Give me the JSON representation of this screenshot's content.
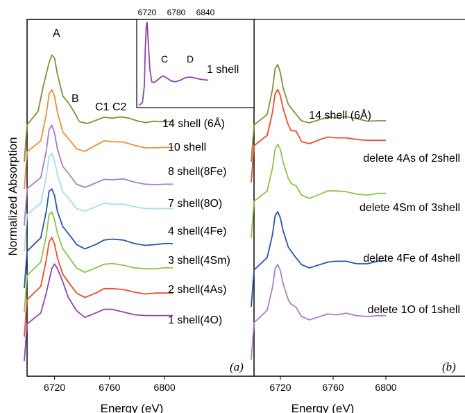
{
  "chart_data": [
    {
      "type": "line",
      "panel_label": "(a)",
      "xlabel": "Energy (eV)",
      "ylabel": "Normalized Absorption",
      "xlim": [
        6700,
        6840
      ],
      "xticks": [
        "6720",
        "6760",
        "6800"
      ],
      "feature_labels": [
        "A",
        "B",
        "C1",
        "C2"
      ],
      "series": [
        {
          "name": "14 shell (6Å)",
          "color": "#8a8a3c",
          "offset": 8,
          "x": [
            6700,
            6708,
            6712,
            6716,
            6718,
            6720,
            6722,
            6726,
            6730,
            6734,
            6738,
            6744,
            6750,
            6756,
            6762,
            6768,
            6774,
            6780,
            6786,
            6792,
            6800,
            6806
          ],
          "y": [
            0.05,
            0.35,
            0.95,
            1.45,
            1.62,
            1.55,
            1.2,
            0.7,
            0.55,
            0.35,
            0.12,
            0.08,
            0.15,
            0.22,
            0.2,
            0.23,
            0.2,
            0.14,
            0.1,
            0.13,
            0.12,
            0.12
          ]
        },
        {
          "name": "10 shell",
          "color": "#e8903c",
          "offset": 7,
          "x": [
            6700,
            6710,
            6714,
            6716,
            6718,
            6720,
            6722,
            6726,
            6730,
            6736,
            6742,
            6750,
            6756,
            6762,
            6770,
            6778,
            6786,
            6794,
            6800,
            6806
          ],
          "y": [
            0.05,
            0.3,
            0.9,
            1.35,
            1.45,
            1.3,
            0.95,
            0.5,
            0.35,
            0.12,
            0.06,
            0.2,
            0.3,
            0.28,
            0.27,
            0.2,
            0.14,
            0.14,
            0.15,
            0.15
          ]
        },
        {
          "name": "8 shell(8Fe)",
          "color": "#a77fc0",
          "offset": 6,
          "x": [
            6700,
            6710,
            6714,
            6716,
            6718,
            6720,
            6722,
            6726,
            6730,
            6736,
            6742,
            6750,
            6756,
            6762,
            6770,
            6778,
            6786,
            6794,
            6800,
            6806
          ],
          "y": [
            0.05,
            0.3,
            0.9,
            1.38,
            1.48,
            1.3,
            0.95,
            0.55,
            0.4,
            0.15,
            0.08,
            0.18,
            0.26,
            0.25,
            0.27,
            0.2,
            0.15,
            0.14,
            0.15,
            0.15
          ]
        },
        {
          "name": "7 shell(8O)",
          "color": "#a8dde8",
          "offset": 5,
          "x": [
            6700,
            6710,
            6714,
            6716,
            6718,
            6720,
            6722,
            6726,
            6730,
            6736,
            6742,
            6750,
            6756,
            6762,
            6770,
            6778,
            6786,
            6794,
            6800,
            6806
          ],
          "y": [
            0.05,
            0.3,
            0.9,
            1.35,
            1.42,
            1.25,
            0.95,
            0.55,
            0.42,
            0.18,
            0.12,
            0.22,
            0.3,
            0.28,
            0.28,
            0.22,
            0.18,
            0.18,
            0.18,
            0.18
          ]
        },
        {
          "name": "4 shell(4Fe)",
          "color": "#2a55a5",
          "offset": 4,
          "x": [
            6700,
            6710,
            6714,
            6716,
            6718,
            6720,
            6722,
            6726,
            6730,
            6736,
            6742,
            6750,
            6756,
            6762,
            6770,
            6778,
            6786,
            6794,
            6800,
            6806
          ],
          "y": [
            0.05,
            0.35,
            0.95,
            1.4,
            1.45,
            1.3,
            0.95,
            0.6,
            0.45,
            0.2,
            0.1,
            0.2,
            0.3,
            0.32,
            0.3,
            0.22,
            0.18,
            0.2,
            0.22,
            0.22
          ]
        },
        {
          "name": "3 shell(4Sm)",
          "color": "#8bc34a",
          "offset": 3,
          "x": [
            6700,
            6710,
            6714,
            6716,
            6718,
            6720,
            6722,
            6726,
            6730,
            6736,
            6742,
            6750,
            6756,
            6762,
            6770,
            6778,
            6786,
            6794,
            6800,
            6806
          ],
          "y": [
            0.05,
            0.35,
            0.95,
            1.42,
            1.48,
            1.3,
            1.0,
            0.65,
            0.48,
            0.22,
            0.12,
            0.22,
            0.3,
            0.32,
            0.28,
            0.22,
            0.2,
            0.2,
            0.22,
            0.22
          ]
        },
        {
          "name": "2 shell(4As)",
          "color": "#f04a2a",
          "offset": 2,
          "x": [
            6700,
            6710,
            6714,
            6716,
            6718,
            6720,
            6722,
            6726,
            6730,
            6736,
            6742,
            6750,
            6756,
            6762,
            6770,
            6778,
            6786,
            6794,
            6800,
            6806
          ],
          "y": [
            0.05,
            0.35,
            0.95,
            1.35,
            1.45,
            1.3,
            1.0,
            0.62,
            0.45,
            0.2,
            0.1,
            0.2,
            0.3,
            0.3,
            0.28,
            0.22,
            0.18,
            0.2,
            0.2,
            0.2
          ]
        },
        {
          "name": "1 shell(4O)",
          "color": "#8e44ad",
          "offset": 1,
          "x": [
            6700,
            6710,
            6714,
            6718,
            6720,
            6722,
            6726,
            6730,
            6736,
            6742,
            6750,
            6756,
            6762,
            6770,
            6778,
            6786,
            6794,
            6800,
            6806
          ],
          "y": [
            0.05,
            0.3,
            0.75,
            1.3,
            1.4,
            1.3,
            1.0,
            0.65,
            0.35,
            0.2,
            0.3,
            0.38,
            0.38,
            0.32,
            0.26,
            0.24,
            0.24,
            0.24,
            0.24
          ]
        }
      ]
    },
    {
      "type": "line",
      "panel_label": "(b)",
      "xlabel": "Energy (eV)",
      "xlim": [
        6700,
        6840
      ],
      "xticks": [
        "6720",
        "6760",
        "6800"
      ],
      "series": [
        {
          "name": "14 shell (6Å)",
          "color": "#8a8a3c",
          "offset": 5,
          "x": [
            6700,
            6710,
            6714,
            6716,
            6718,
            6720,
            6722,
            6726,
            6730,
            6736,
            6742,
            6750,
            6756,
            6762,
            6770,
            6778,
            6786,
            6794,
            6800
          ],
          "y": [
            0.05,
            0.3,
            0.9,
            1.4,
            1.5,
            1.3,
            0.95,
            0.55,
            0.38,
            0.15,
            0.1,
            0.18,
            0.24,
            0.22,
            0.25,
            0.2,
            0.14,
            0.15,
            0.15
          ]
        },
        {
          "name": "delete 4As of 2shell",
          "color": "#f04a2a",
          "offset": 4,
          "x": [
            6700,
            6710,
            6714,
            6716,
            6718,
            6720,
            6722,
            6726,
            6728,
            6732,
            6736,
            6742,
            6750,
            6756,
            6762,
            6770,
            6778,
            6786,
            6794,
            6800
          ],
          "y": [
            0.05,
            0.3,
            0.85,
            1.3,
            1.4,
            1.25,
            0.95,
            0.55,
            0.42,
            0.4,
            0.15,
            0.1,
            0.2,
            0.26,
            0.24,
            0.24,
            0.2,
            0.18,
            0.18,
            0.18
          ]
        },
        {
          "name": "delete 4Sm of 3shell",
          "color": "#8bc34a",
          "offset": 3,
          "x": [
            6700,
            6710,
            6714,
            6716,
            6718,
            6720,
            6722,
            6726,
            6728,
            6732,
            6736,
            6742,
            6750,
            6756,
            6762,
            6770,
            6778,
            6786,
            6794,
            6800
          ],
          "y": [
            0.05,
            0.3,
            0.85,
            1.3,
            1.42,
            1.3,
            1.0,
            0.6,
            0.48,
            0.42,
            0.2,
            0.12,
            0.22,
            0.3,
            0.3,
            0.28,
            0.22,
            0.2,
            0.24,
            0.24
          ]
        },
        {
          "name": "delete 4Fe of 4shell",
          "color": "#2a55a5",
          "offset": 2,
          "x": [
            6700,
            6710,
            6714,
            6716,
            6718,
            6720,
            6722,
            6726,
            6730,
            6736,
            6742,
            6750,
            6756,
            6762,
            6770,
            6778,
            6786,
            6794,
            6800
          ],
          "y": [
            0.05,
            0.35,
            0.9,
            1.35,
            1.45,
            1.3,
            1.0,
            0.6,
            0.42,
            0.18,
            0.1,
            0.18,
            0.24,
            0.26,
            0.26,
            0.2,
            0.2,
            0.26,
            0.28
          ]
        },
        {
          "name": "delete 1O of 1shell",
          "color": "#b07cc6",
          "offset": 1,
          "x": [
            6700,
            6710,
            6714,
            6716,
            6718,
            6720,
            6722,
            6726,
            6728,
            6732,
            6736,
            6742,
            6750,
            6756,
            6762,
            6770,
            6778,
            6786,
            6794,
            6800
          ],
          "y": [
            0.05,
            0.35,
            0.9,
            1.35,
            1.45,
            1.3,
            1.0,
            0.6,
            0.5,
            0.42,
            0.2,
            0.12,
            0.2,
            0.26,
            0.24,
            0.28,
            0.22,
            0.2,
            0.22,
            0.22
          ]
        }
      ]
    },
    {
      "type": "line",
      "panel_label": "inset",
      "xlim": [
        6700,
        6850
      ],
      "xticks": [
        "6720",
        "6780",
        "6840"
      ],
      "feature_labels": [
        "C",
        "D"
      ],
      "series": [
        {
          "name": "1 shell",
          "color": "#8e44ad",
          "x": [
            6700,
            6708,
            6712,
            6714,
            6716,
            6718,
            6720,
            6724,
            6728,
            6732,
            6738,
            6746,
            6752,
            6760,
            6770,
            6780,
            6790,
            6800,
            6810,
            6820,
            6830,
            6840,
            6850
          ],
          "y": [
            0.0,
            0.08,
            0.5,
            1.4,
            2.0,
            2.1,
            1.7,
            0.9,
            0.6,
            0.58,
            0.62,
            0.7,
            0.75,
            0.7,
            0.62,
            0.6,
            0.64,
            0.7,
            0.72,
            0.7,
            0.67,
            0.65,
            0.64
          ]
        }
      ]
    }
  ]
}
